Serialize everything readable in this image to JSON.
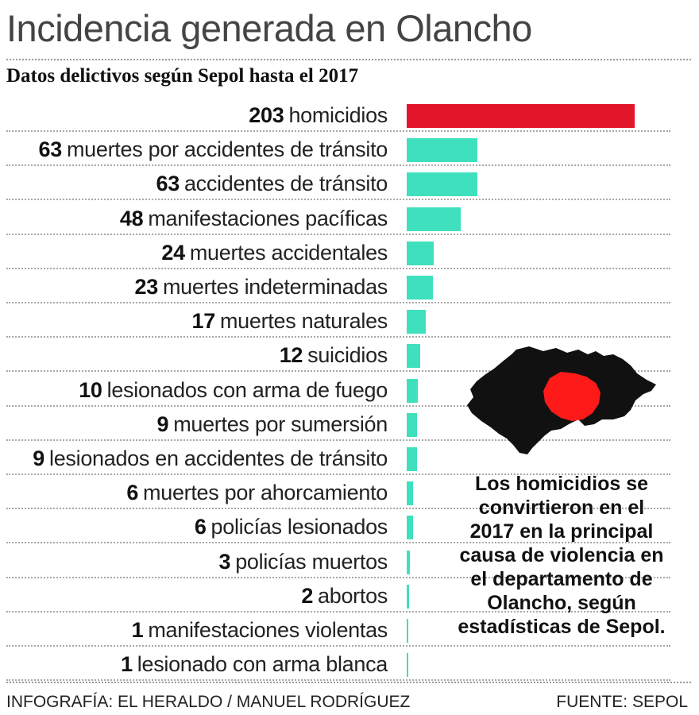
{
  "header": {
    "title": "Incidencia generada en Olancho",
    "subtitle": "Datos delictivos según Sepol  hasta el 2017"
  },
  "chart_data": {
    "type": "bar",
    "orientation": "horizontal",
    "title": "Incidencia generada en Olancho",
    "subtitle": "Datos delictivos según Sepol  hasta el 2017",
    "categories": [
      "homicidios",
      "muertes por accidentes de tránsito",
      "accidentes de tránsito",
      "manifestaciones pacíficas",
      "muertes accidentales",
      "muertes indeterminadas",
      "muertes naturales",
      "suicidios",
      "lesionados con arma de fuego",
      "muertes por sumersión",
      "lesionados en accidentes de tránsito",
      "muertes por ahorcamiento",
      "policías lesionados",
      "policías muertos",
      "abortos",
      "manifestaciones violentas",
      "lesionado con arma blanca"
    ],
    "values": [
      203,
      63,
      63,
      48,
      24,
      23,
      17,
      12,
      10,
      9,
      9,
      6,
      6,
      3,
      2,
      1,
      1
    ],
    "highlight_color": "#e3152b",
    "bar_color": "#3fe0bd",
    "xlim": [
      0,
      203
    ]
  },
  "map": {
    "region_color": "#ff1a1a",
    "country_color": "#111111"
  },
  "note": "Los homicidios se convirtieron en el 2017 en la principal causa de violencia en el departamento de Olancho, según estadísticas de Sepol.",
  "footer": {
    "credit": "INFOGRAFÍA: EL HERALDO / MANUEL RODRÍGUEZ",
    "source": "FUENTE: SEPOL"
  }
}
